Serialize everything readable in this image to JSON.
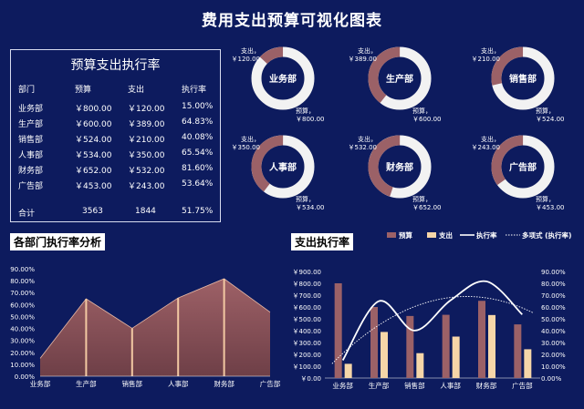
{
  "title": "费用支出预算可视化图表",
  "table": {
    "title": "预算支出执行率",
    "headers": [
      "部门",
      "预算",
      "支出",
      "执行率"
    ],
    "rows": [
      [
        "业务部",
        "￥800.00",
        "￥120.00",
        "15.00%"
      ],
      [
        "生产部",
        "￥600.00",
        "￥389.00",
        "64.83%"
      ],
      [
        "销售部",
        "￥524.00",
        "￥210.00",
        "40.08%"
      ],
      [
        "人事部",
        "￥534.00",
        "￥350.00",
        "65.54%"
      ],
      [
        "财务部",
        "￥652.00",
        "￥532.00",
        "81.60%"
      ],
      [
        "广告部",
        "￥453.00",
        "￥243.00",
        "53.64%"
      ]
    ],
    "total": [
      "合计",
      "3563",
      "1844",
      "51.75%"
    ]
  },
  "donuts": [
    {
      "dept": "业务部",
      "spend_label": "支出，",
      "spend_value": "￥120.00",
      "budget_label": "预算，",
      "budget_value": "￥800.00",
      "fraction": 0.1304
    },
    {
      "dept": "生产部",
      "spend_label": "支出，",
      "spend_value": "￥389.00",
      "budget_label": "预算，",
      "budget_value": "￥600.00",
      "fraction": 0.3933
    },
    {
      "dept": "销售部",
      "spend_label": "支出，",
      "spend_value": "￥210.00",
      "budget_label": "预算，",
      "budget_value": "￥524.00",
      "fraction": 0.2861
    },
    {
      "dept": "人事部",
      "spend_label": "支出，",
      "spend_value": "￥350.00",
      "budget_label": "预算，",
      "budget_value": "￥534.00",
      "fraction": 0.3959
    },
    {
      "dept": "财务部",
      "spend_label": "支出，",
      "spend_value": "￥532.00",
      "budget_label": "预算，",
      "budget_value": "￥652.00",
      "fraction": 0.4493
    },
    {
      "dept": "广告部",
      "spend_label": "支出，",
      "spend_value": "￥243.00",
      "budget_label": "预算，",
      "budget_value": "￥453.00",
      "fraction": 0.3491
    }
  ],
  "colors": {
    "background": "#0d1b5e",
    "budget": "#9b6167",
    "spend": "#f6d6a8",
    "donut_rest": "#f2f2f2",
    "area_top": "#9e6167",
    "area_bottom": "#6e3f47"
  },
  "chart_data": [
    {
      "type": "area",
      "title": "各部门执行率分析",
      "categories": [
        "业务部",
        "生产部",
        "销售部",
        "人事部",
        "财务部",
        "广告部"
      ],
      "values": [
        15.0,
        64.83,
        40.08,
        65.54,
        81.6,
        53.64
      ],
      "y_ticks": [
        "0.00%",
        "10.00%",
        "20.00%",
        "30.00%",
        "40.00%",
        "50.00%",
        "60.00%",
        "70.00%",
        "80.00%",
        "90.00%"
      ],
      "ylim": [
        0,
        90
      ],
      "grid": false
    },
    {
      "type": "bar",
      "title": "支出执行率",
      "categories": [
        "业务部",
        "生产部",
        "销售部",
        "人事部",
        "财务部",
        "广告部"
      ],
      "series": [
        {
          "name": "预算",
          "type": "bar",
          "values": [
            800,
            600,
            524,
            534,
            652,
            453
          ]
        },
        {
          "name": "支出",
          "type": "bar",
          "values": [
            120,
            389,
            210,
            350,
            532,
            243
          ]
        },
        {
          "name": "执行率",
          "type": "line",
          "axis": "right",
          "values": [
            15.0,
            64.83,
            40.08,
            65.54,
            81.6,
            53.64
          ]
        },
        {
          "name": "多项式 (执行率)",
          "type": "trendline",
          "axis": "right"
        }
      ],
      "left_ticks": [
        "￥0.00",
        "￥100.00",
        "￥200.00",
        "￥300.00",
        "￥400.00",
        "￥500.00",
        "￥600.00",
        "￥700.00",
        "￥800.00",
        "￥900.00"
      ],
      "right_ticks": [
        "0.00%",
        "10.00%",
        "20.00%",
        "30.00%",
        "40.00%",
        "50.00%",
        "60.00%",
        "70.00%",
        "80.00%",
        "90.00%"
      ],
      "ylim_left": [
        0,
        900
      ],
      "ylim_right": [
        0,
        90
      ],
      "legend": "top-right",
      "grid": false
    }
  ]
}
